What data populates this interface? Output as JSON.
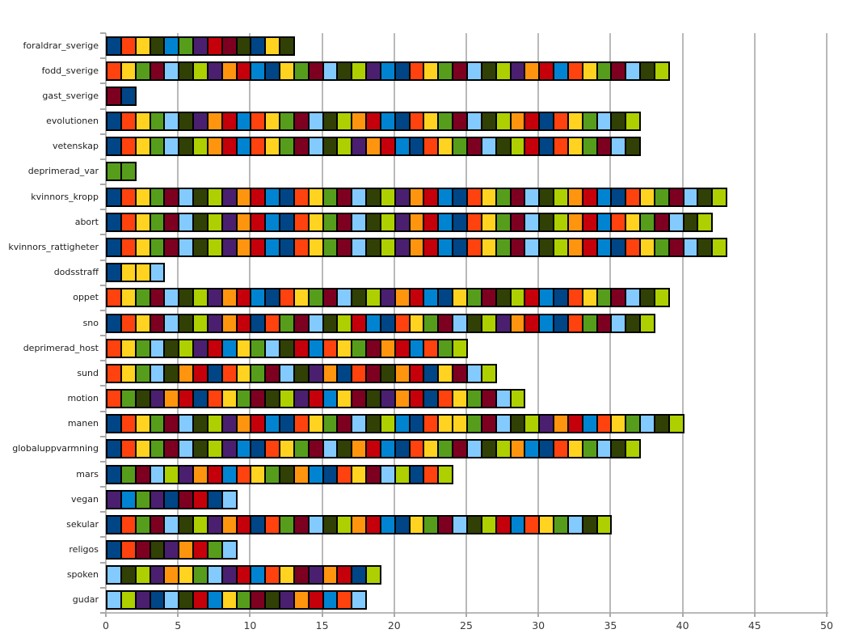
{
  "chart_data": {
    "type": "bar",
    "orientation": "horizontal",
    "title": "",
    "xlabel": "",
    "ylabel": "",
    "xlim": [
      0,
      50
    ],
    "x_ticks": [
      0,
      5,
      10,
      15,
      20,
      25,
      30,
      35,
      40,
      45,
      50
    ],
    "grid": "vertical",
    "legend": "none",
    "unit_per_segment": 1,
    "palette": [
      {
        "name": "navy",
        "hex": "#004586"
      },
      {
        "name": "orangered",
        "hex": "#ff420e"
      },
      {
        "name": "yellow",
        "hex": "#ffd320"
      },
      {
        "name": "green",
        "hex": "#579d1c"
      },
      {
        "name": "maroon",
        "hex": "#7e0021"
      },
      {
        "name": "lightblue",
        "hex": "#83caff"
      },
      {
        "name": "olive",
        "hex": "#314004"
      },
      {
        "name": "lime",
        "hex": "#aecf00"
      },
      {
        "name": "purple",
        "hex": "#4b1f6f"
      },
      {
        "name": "orange",
        "hex": "#ff950e"
      },
      {
        "name": "red",
        "hex": "#c5000b"
      },
      {
        "name": "blue",
        "hex": "#0084d1"
      }
    ],
    "categories": [
      "foraldrar_sverige",
      "fodd_sverige",
      "gast_sverige",
      "evolutionen",
      "vetenskap",
      "deprimerad_var",
      "kvinnors_kropp",
      "abort",
      "kvinnors_rattigheter",
      "dodsstraff",
      "oppet",
      "sno",
      "deprimerad_host",
      "sund",
      "motion",
      "manen",
      "globaluppvarmning",
      "mars",
      "vegan",
      "sekular",
      "religos",
      "spoken",
      "gudar"
    ],
    "values": [
      13,
      39,
      2,
      37,
      37,
      2,
      43,
      42,
      43,
      4,
      39,
      38,
      25,
      27,
      29,
      40,
      37,
      24,
      9,
      35,
      9,
      19,
      18
    ],
    "segment_colors": [
      [
        1,
        2,
        3,
        7,
        12,
        4,
        9,
        11,
        5,
        7,
        1,
        3,
        7
      ],
      [
        2,
        3,
        4,
        5,
        6,
        7,
        8,
        9,
        10,
        11,
        12,
        1,
        3,
        4,
        5,
        6,
        7,
        8,
        9,
        12,
        1,
        2,
        3,
        4,
        5,
        6,
        7,
        8,
        9,
        10,
        11,
        12,
        2,
        3,
        4,
        5,
        6,
        7,
        8
      ],
      [
        5,
        1
      ],
      [
        1,
        2,
        3,
        4,
        6,
        7,
        9,
        10,
        11,
        12,
        2,
        3,
        4,
        5,
        6,
        7,
        8,
        10,
        11,
        12,
        1,
        2,
        3,
        4,
        5,
        6,
        7,
        8,
        10,
        11,
        1,
        2,
        3,
        4,
        6,
        7,
        8
      ],
      [
        1,
        2,
        3,
        4,
        6,
        7,
        8,
        10,
        11,
        12,
        2,
        3,
        4,
        5,
        6,
        7,
        8,
        9,
        10,
        11,
        12,
        1,
        2,
        3,
        4,
        5,
        6,
        7,
        8,
        11,
        1,
        2,
        3,
        4,
        5,
        6,
        7
      ],
      [
        4,
        4
      ],
      [
        1,
        2,
        3,
        4,
        5,
        6,
        7,
        8,
        9,
        10,
        11,
        12,
        1,
        2,
        3,
        4,
        5,
        6,
        7,
        8,
        9,
        10,
        11,
        12,
        1,
        2,
        3,
        4,
        5,
        6,
        7,
        8,
        10,
        11,
        12,
        1,
        2,
        3,
        4,
        5,
        6,
        7,
        8
      ],
      [
        1,
        2,
        3,
        4,
        5,
        6,
        7,
        8,
        9,
        10,
        11,
        12,
        1,
        2,
        3,
        4,
        5,
        6,
        7,
        8,
        9,
        10,
        11,
        12,
        1,
        2,
        3,
        4,
        5,
        6,
        7,
        8,
        10,
        11,
        12,
        2,
        3,
        4,
        5,
        6,
        7,
        8
      ],
      [
        1,
        2,
        3,
        4,
        5,
        6,
        7,
        8,
        9,
        10,
        11,
        12,
        1,
        2,
        3,
        4,
        5,
        6,
        7,
        8,
        9,
        10,
        11,
        12,
        1,
        2,
        3,
        4,
        5,
        6,
        7,
        8,
        10,
        11,
        12,
        1,
        2,
        3,
        4,
        5,
        6,
        7,
        8
      ],
      [
        1,
        3,
        3,
        6
      ],
      [
        2,
        3,
        4,
        5,
        6,
        7,
        8,
        9,
        10,
        11,
        12,
        1,
        2,
        3,
        4,
        5,
        6,
        7,
        8,
        9,
        10,
        11,
        12,
        1,
        3,
        4,
        5,
        7,
        8,
        11,
        12,
        1,
        2,
        3,
        4,
        5,
        6,
        7,
        8
      ],
      [
        1,
        2,
        3,
        5,
        6,
        7,
        8,
        9,
        10,
        11,
        1,
        2,
        4,
        5,
        6,
        7,
        8,
        11,
        12,
        1,
        2,
        3,
        4,
        5,
        6,
        7,
        8,
        9,
        10,
        11,
        12,
        1,
        2,
        4,
        5,
        6,
        7,
        8
      ],
      [
        2,
        3,
        4,
        6,
        7,
        8,
        9,
        11,
        12,
        3,
        4,
        6,
        7,
        11,
        12,
        2,
        3,
        4,
        5,
        10,
        11,
        12,
        2,
        4,
        8
      ],
      [
        2,
        3,
        4,
        6,
        7,
        10,
        11,
        1,
        2,
        3,
        4,
        5,
        6,
        7,
        9,
        10,
        1,
        2,
        5,
        7,
        10,
        11,
        1,
        3,
        5,
        6,
        8
      ],
      [
        2,
        4,
        7,
        9,
        10,
        11,
        1,
        2,
        3,
        4,
        5,
        7,
        8,
        9,
        11,
        12,
        3,
        5,
        7,
        9,
        10,
        11,
        1,
        2,
        3,
        4,
        5,
        6,
        8
      ],
      [
        1,
        2,
        3,
        4,
        5,
        6,
        7,
        8,
        9,
        10,
        11,
        12,
        1,
        2,
        3,
        4,
        5,
        6,
        7,
        8,
        12,
        1,
        2,
        3,
        3,
        4,
        5,
        6,
        7,
        8,
        9,
        10,
        11,
        12,
        2,
        3,
        4,
        6,
        7,
        8
      ],
      [
        1,
        2,
        3,
        4,
        5,
        6,
        7,
        8,
        9,
        12,
        1,
        2,
        3,
        4,
        5,
        6,
        7,
        10,
        11,
        12,
        1,
        2,
        3,
        4,
        5,
        6,
        7,
        8,
        10,
        12,
        1,
        2,
        3,
        4,
        6,
        7,
        8
      ],
      [
        1,
        4,
        5,
        6,
        8,
        9,
        10,
        11,
        12,
        2,
        3,
        4,
        7,
        10,
        12,
        1,
        2,
        3,
        5,
        6,
        8,
        1,
        2,
        8
      ],
      [
        9,
        12,
        4,
        9,
        1,
        5,
        11,
        1,
        6
      ],
      [
        1,
        2,
        4,
        5,
        6,
        7,
        8,
        9,
        10,
        11,
        1,
        2,
        4,
        5,
        6,
        7,
        8,
        10,
        11,
        12,
        1,
        3,
        4,
        5,
        6,
        7,
        8,
        11,
        12,
        2,
        3,
        4,
        6,
        7,
        8
      ],
      [
        1,
        2,
        5,
        7,
        9,
        10,
        11,
        4,
        6
      ],
      [
        6,
        7,
        8,
        9,
        10,
        3,
        4,
        6,
        9,
        11,
        12,
        2,
        3,
        5,
        9,
        10,
        11,
        1,
        8
      ],
      [
        6,
        8,
        9,
        1,
        6,
        7,
        11,
        12,
        3,
        4,
        5,
        7,
        9,
        10,
        11,
        12,
        2,
        6
      ]
    ],
    "axis_colors": {
      "grid": "#b9b9b9",
      "tick": "#a9a9a9",
      "label": "#3a3a3a",
      "category_label": "#1e1e1e"
    }
  }
}
